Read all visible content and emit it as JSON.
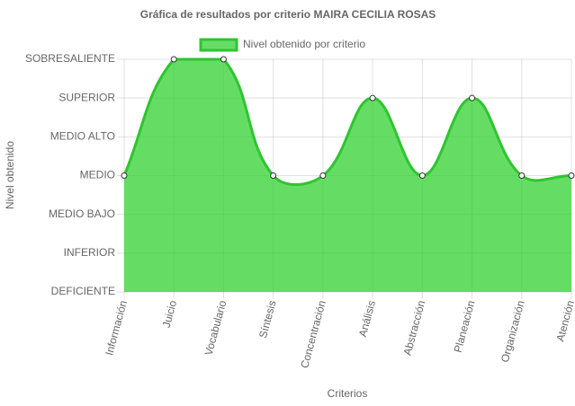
{
  "chart_data": {
    "type": "line",
    "title": "Gráfica de resultados por criterio MAIRA CECILIA ROSAS",
    "x_label": "Criterios",
    "y_label": "Nivel obtenido",
    "categories": [
      "Información",
      "Juicio",
      "Vocabulario",
      "Síntesis",
      "Concentración",
      "Análisis",
      "Abstracción",
      "Planeación",
      "Organización",
      "Atención"
    ],
    "series": [
      {
        "name": "Nivel obtenido por criterio",
        "color": "#2ec52e",
        "fill": "rgba(50,210,50,0.75)",
        "values": [
          3,
          6,
          6,
          3,
          3,
          5,
          3,
          5,
          3,
          3
        ]
      }
    ],
    "ylim": [
      0,
      6
    ],
    "yticks": [
      {
        "value": 0,
        "label": "DEFICIENTE"
      },
      {
        "value": 1,
        "label": "INFERIOR"
      },
      {
        "value": 2,
        "label": "MEDIO BAJO"
      },
      {
        "value": 3,
        "label": "MEDIO"
      },
      {
        "value": 4,
        "label": "MEDIO ALTO"
      },
      {
        "value": 5,
        "label": "SUPERIOR"
      },
      {
        "value": 6,
        "label": "SOBRESALIENTE"
      }
    ],
    "grid": true,
    "legend": "top"
  }
}
